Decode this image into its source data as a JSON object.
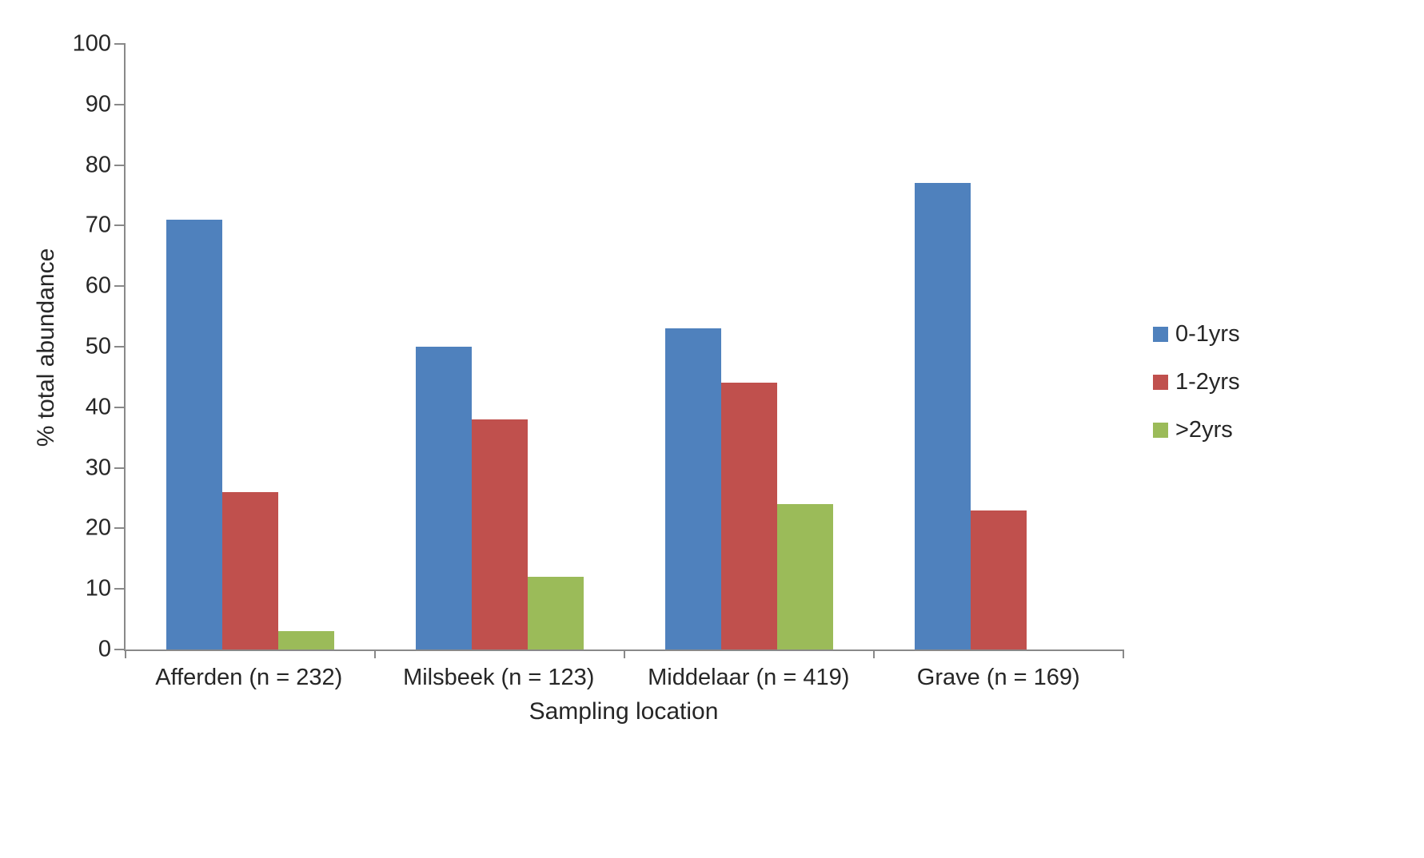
{
  "chart_data": {
    "type": "bar",
    "title": "",
    "xlabel": "Sampling location",
    "ylabel": "% total abundance",
    "ylim": [
      0,
      100
    ],
    "ytick_step": 10,
    "grid": false,
    "legend_position": "right",
    "categories": [
      "Afferden (n = 232)",
      "Milsbeek (n = 123)",
      "Middelaar (n = 419)",
      "Grave  (n = 169)"
    ],
    "series": [
      {
        "name": "0-1yrs",
        "color": "#4F81BD",
        "values": [
          71,
          50,
          53,
          77
        ]
      },
      {
        "name": "1-2yrs",
        "color": "#C0504D",
        "values": [
          26,
          38,
          44,
          23
        ]
      },
      {
        "name": ">2yrs",
        "color": "#9BBB59",
        "values": [
          3,
          12,
          24,
          0
        ]
      }
    ],
    "axis_color": "#898989",
    "text_color": "#262626"
  }
}
